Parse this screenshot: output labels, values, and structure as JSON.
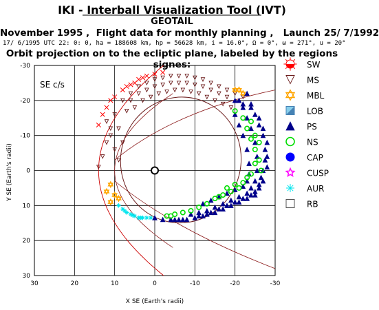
{
  "header": {
    "title": "IKI - Interball Visualization Tool (IVT)",
    "spacecraft": "GEOTAIL",
    "subtitle": "November 1995 ,  Flight data for monthly planning ,   Launch 25/ 7/1992",
    "info_line": "17/ 6/1995 UTC 22: 0: 0, ha = 188608 km, hp = 56628 km, i = 16.0°, Ω =  0°, ω = 271°, u =  20°",
    "caption": "Orbit projection on to the ecliptic plane, labeled by the regions signes:"
  },
  "chart_data": {
    "type": "scatter",
    "panel_label": "SE c/s",
    "xlabel": "X SE (Earth's radii)",
    "ylabel": "Y SE (Earth's radii)",
    "xlim": [
      30,
      -30
    ],
    "ylim": [
      -30,
      30
    ],
    "x_ticks": [
      "30",
      "20",
      "10",
      "0",
      "-10",
      "-20",
      "-30"
    ],
    "y_ticks": [
      "-30",
      "-20",
      "-10",
      "0",
      "10",
      "20",
      "30"
    ],
    "grid": true,
    "orbit_ellipse": {
      "center": [
        -6.5,
        -3
      ],
      "semi_axes": [
        15,
        18
      ],
      "rotation_deg": 12
    },
    "earth": [
      0,
      0
    ],
    "series": [
      {
        "name": "SW",
        "color": "#ff0000",
        "points": [
          [
            10,
            -21
          ],
          [
            8,
            -23
          ],
          [
            6,
            -24.5
          ],
          [
            4,
            -26
          ],
          [
            2,
            -27
          ],
          [
            0,
            -27.5
          ],
          [
            -2,
            -28
          ],
          [
            12,
            -18
          ],
          [
            13,
            -16
          ],
          [
            14,
            -13
          ],
          [
            11,
            -20
          ],
          [
            7,
            -24
          ],
          [
            5,
            -25
          ],
          [
            3,
            -26.5
          ]
        ]
      },
      {
        "name": "MS",
        "color": "#6b1a1a",
        "points": [
          [
            12,
            -14
          ],
          [
            11,
            -10
          ],
          [
            10,
            -6
          ],
          [
            9,
            -3
          ],
          [
            8,
            -20
          ],
          [
            6,
            -22
          ],
          [
            4,
            -24
          ],
          [
            2,
            -25
          ],
          [
            0,
            -26
          ],
          [
            -2,
            -26.5
          ],
          [
            -4,
            -27
          ],
          [
            -6,
            -27
          ],
          [
            -8,
            -27
          ],
          [
            -10,
            -26.5
          ],
          [
            -12,
            -26
          ],
          [
            -14,
            -25
          ],
          [
            -16,
            -24
          ],
          [
            -18,
            -23
          ],
          [
            -20,
            -22
          ],
          [
            -22,
            -21
          ],
          [
            7,
            -17
          ],
          [
            9,
            -12
          ],
          [
            8,
            -8
          ],
          [
            6,
            -20
          ],
          [
            4,
            -22
          ],
          [
            2,
            -23
          ],
          [
            0,
            -24
          ],
          [
            -2,
            -24.5
          ],
          [
            -4,
            -25
          ],
          [
            -6,
            -25
          ],
          [
            -8,
            -25
          ],
          [
            -10,
            -24.5
          ],
          [
            -12,
            -24
          ],
          [
            -14,
            -23
          ],
          [
            -16,
            -22
          ],
          [
            -18,
            -21
          ],
          [
            5,
            -18
          ],
          [
            3,
            -20
          ],
          [
            1,
            -21
          ],
          [
            -1,
            -22
          ],
          [
            -3,
            -22.5
          ],
          [
            -5,
            -23
          ],
          [
            -7,
            -23
          ],
          [
            -9,
            -22.5
          ],
          [
            -11,
            -22
          ],
          [
            -13,
            -21
          ],
          [
            -15,
            -20
          ],
          [
            -17,
            -19
          ],
          [
            -19,
            -18
          ],
          [
            10,
            -16
          ],
          [
            11,
            -12
          ],
          [
            12,
            -8
          ],
          [
            13,
            -4
          ],
          [
            14,
            -1
          ]
        ]
      },
      {
        "name": "MBL",
        "color": "#ffa500",
        "points": [
          [
            -21,
            -23
          ],
          [
            -22,
            -22
          ],
          [
            11,
            4
          ],
          [
            10,
            7
          ],
          [
            9,
            8
          ],
          [
            12,
            6
          ],
          [
            11,
            9
          ],
          [
            -20,
            -23
          ]
        ]
      },
      {
        "name": "PS",
        "color": "#00008b",
        "points": [
          [
            -23,
            -22
          ],
          [
            -24,
            -19
          ],
          [
            -25,
            -16
          ],
          [
            -26,
            -13
          ],
          [
            -27,
            -10
          ],
          [
            -27.5,
            -6
          ],
          [
            -27.5,
            -3
          ],
          [
            -27,
            0
          ],
          [
            -26.5,
            2
          ],
          [
            -26,
            4
          ],
          [
            -25,
            6
          ],
          [
            -24,
            7
          ],
          [
            -22,
            8
          ],
          [
            -20,
            9
          ],
          [
            -18,
            10
          ],
          [
            -16,
            11
          ],
          [
            -14,
            12
          ],
          [
            -12,
            13
          ],
          [
            -10,
            13.5
          ],
          [
            -8,
            14
          ],
          [
            -6,
            14
          ],
          [
            -4,
            14
          ],
          [
            -2,
            14
          ],
          [
            0,
            13.5
          ],
          [
            -22,
            -18
          ],
          [
            -23,
            -15
          ],
          [
            -24,
            -12
          ],
          [
            -25,
            -8
          ],
          [
            -25.5,
            -4
          ],
          [
            -25.5,
            0
          ],
          [
            -25,
            3
          ],
          [
            -24,
            5
          ],
          [
            -23,
            6.5
          ],
          [
            -21,
            7.5
          ],
          [
            -19,
            8.5
          ],
          [
            -17,
            9.5
          ],
          [
            -15,
            10.5
          ],
          [
            -13,
            11.5
          ],
          [
            -11,
            12
          ],
          [
            -9,
            12.5
          ],
          [
            -20,
            -16
          ],
          [
            -21,
            -13
          ],
          [
            -22,
            -10
          ],
          [
            -23,
            -6
          ],
          [
            -23.5,
            -2
          ],
          [
            -23.5,
            1
          ],
          [
            -23,
            3
          ],
          [
            -22,
            4.5
          ],
          [
            -20,
            5.5
          ],
          [
            -18,
            6.5
          ],
          [
            -16,
            7.5
          ],
          [
            -14,
            8.5
          ],
          [
            -12,
            9.5
          ],
          [
            -20,
            -20
          ],
          [
            -21,
            -20
          ],
          [
            -22,
            -19
          ],
          [
            -24,
            -18
          ],
          [
            -26,
            -15
          ],
          [
            -27,
            -12
          ],
          [
            -28,
            -8
          ],
          [
            -28,
            -4
          ],
          [
            -28,
            -1
          ],
          [
            -27,
            3
          ],
          [
            -26,
            5
          ],
          [
            -25,
            7
          ],
          [
            -23,
            8
          ],
          [
            -21,
            9
          ],
          [
            -19,
            10
          ],
          [
            -17,
            11
          ],
          [
            -15,
            12
          ],
          [
            -13,
            12.5
          ],
          [
            -11,
            13
          ],
          [
            -7,
            14
          ],
          [
            -5,
            14
          ]
        ]
      },
      {
        "name": "NS",
        "color": "#00dd00",
        "points": [
          [
            -22,
            -15
          ],
          [
            -23,
            -12
          ],
          [
            -24,
            -9
          ],
          [
            -25,
            -6
          ],
          [
            -26,
            -3
          ],
          [
            -26.5,
            0
          ],
          [
            -25,
            -10
          ],
          [
            -24,
            -14
          ],
          [
            -23,
            2
          ],
          [
            -22,
            3.5
          ],
          [
            -21,
            5
          ],
          [
            -19,
            6
          ],
          [
            -17,
            7
          ],
          [
            -15,
            8
          ],
          [
            -13,
            9.5
          ],
          [
            -11,
            10.5
          ],
          [
            -9,
            11.5
          ],
          [
            -7,
            12
          ],
          [
            -5,
            12.5
          ],
          [
            -4,
            13
          ],
          [
            -3,
            13
          ],
          [
            -20,
            -17
          ],
          [
            -26,
            -8
          ],
          [
            -25,
            -2
          ],
          [
            -24,
            1
          ],
          [
            -20,
            4
          ],
          [
            -18,
            5
          ],
          [
            -16,
            7.5
          ]
        ]
      },
      {
        "name": "AUR",
        "color": "#00e5ee",
        "points": [
          [
            9,
            10
          ],
          [
            8,
            11
          ],
          [
            7,
            12
          ],
          [
            6,
            12.5
          ],
          [
            5,
            13
          ],
          [
            4,
            13.5
          ],
          [
            3,
            13.5
          ],
          [
            2,
            13.5
          ],
          [
            1,
            13.5
          ],
          [
            7.5,
            11.5
          ],
          [
            5.5,
            12.8
          ],
          [
            3.5,
            13.5
          ]
        ]
      }
    ],
    "legend": [
      {
        "label": "SW",
        "marker": "sun",
        "color": "#ff0000"
      },
      {
        "label": "MS",
        "marker": "triangle-down",
        "color": "#6b1a1a"
      },
      {
        "label": "MBL",
        "marker": "star-of-david",
        "color": "#ffa500"
      },
      {
        "label": "LOB",
        "marker": "square-split",
        "color": "#4682b4"
      },
      {
        "label": "PS",
        "marker": "triangle-up",
        "color": "#00008b"
      },
      {
        "label": "NS",
        "marker": "circle",
        "color": "#00dd00"
      },
      {
        "label": "CAP",
        "marker": "filled-circle",
        "color": "#0000ff"
      },
      {
        "label": "CUSP",
        "marker": "star",
        "color": "#ff00ff"
      },
      {
        "label": "AUR",
        "marker": "asterisk",
        "color": "#00e5ee"
      },
      {
        "label": "RB",
        "marker": "square",
        "color": "#555555"
      }
    ]
  }
}
